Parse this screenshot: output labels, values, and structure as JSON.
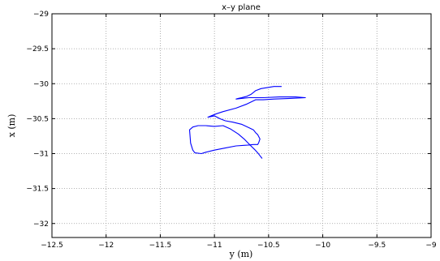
{
  "chart_data": {
    "type": "line",
    "title": "x–y plane",
    "xlabel": "y (m)",
    "ylabel": "x (m)",
    "xlim": [
      -12.5,
      -9
    ],
    "ylim": [
      -32.2,
      -29
    ],
    "y_reversed": true,
    "grid": true,
    "x_ticks": [
      -12.5,
      -12,
      -11.5,
      -11,
      -10.5,
      -10,
      -9.5,
      -9
    ],
    "x_tick_labels": [
      "−12.5",
      "−12",
      "−11.5",
      "−11",
      "−10.5",
      "−10",
      "−9.5",
      "−9"
    ],
    "y_ticks": [
      -29,
      -29.5,
      -30,
      -30.5,
      -31,
      -31.5,
      -32
    ],
    "y_tick_labels": [
      "−29",
      "−29.5",
      "−30",
      "−30.5",
      "−31",
      "−31.5",
      "−32"
    ],
    "series": [
      {
        "color": "#0000ff",
        "x": [
          -10.38,
          -10.45,
          -10.53,
          -10.57,
          -10.62,
          -10.66,
          -10.7,
          -10.75,
          -10.78,
          -10.8,
          -10.75,
          -10.68,
          -10.55,
          -10.4,
          -10.25,
          -10.16,
          -10.3,
          -10.45,
          -10.55,
          -10.62,
          -10.7,
          -10.8,
          -10.92,
          -10.98,
          -11.03,
          -11.06,
          -11.0,
          -10.95,
          -10.9,
          -10.83,
          -10.75,
          -10.68,
          -10.64,
          -10.62,
          -10.6,
          -10.58,
          -10.59,
          -10.6,
          -10.62,
          -10.64,
          -10.7,
          -10.8,
          -10.9,
          -11.0,
          -11.08,
          -11.12,
          -11.18,
          -11.2,
          -11.22,
          -11.23,
          -11.2,
          -11.15,
          -11.08,
          -11.0,
          -10.92,
          -10.85,
          -10.78,
          -10.72,
          -10.67,
          -10.63,
          -10.6,
          -10.58,
          -10.56
        ],
        "y": [
          -30.04,
          -30.04,
          -30.06,
          -30.07,
          -30.1,
          -30.15,
          -30.18,
          -30.2,
          -30.21,
          -30.22,
          -30.21,
          -30.2,
          -30.2,
          -30.19,
          -30.19,
          -30.2,
          -30.21,
          -30.22,
          -30.23,
          -30.23,
          -30.29,
          -30.35,
          -30.4,
          -30.43,
          -30.46,
          -30.48,
          -30.46,
          -30.5,
          -30.53,
          -30.55,
          -30.58,
          -30.63,
          -30.66,
          -30.7,
          -30.73,
          -30.79,
          -30.84,
          -30.87,
          -30.87,
          -30.87,
          -30.88,
          -30.89,
          -30.92,
          -30.95,
          -30.98,
          -31.0,
          -30.99,
          -30.95,
          -30.85,
          -30.66,
          -30.62,
          -30.6,
          -30.6,
          -30.61,
          -30.6,
          -30.65,
          -30.72,
          -30.8,
          -30.88,
          -30.94,
          -30.99,
          -31.03,
          -31.07
        ]
      }
    ]
  }
}
